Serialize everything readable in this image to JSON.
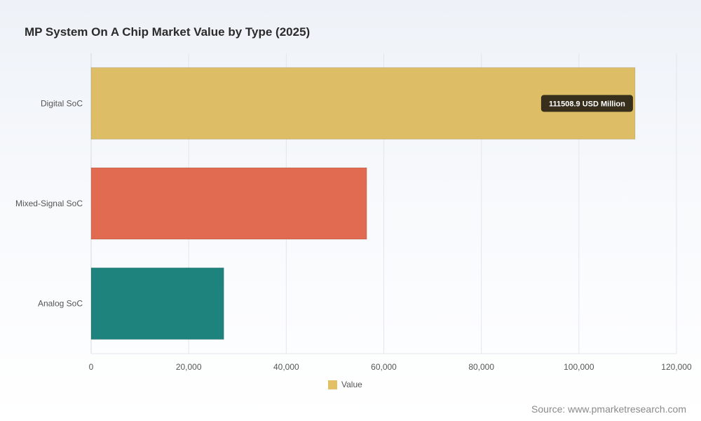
{
  "title": "MP System On A Chip Market Value by Type (2025)",
  "source": "Source: www.pmarketresearch.com",
  "legend": {
    "label": "Value",
    "color": "#e3c066"
  },
  "tooltip": {
    "text": "111508.9 USD Million"
  },
  "chart_data": {
    "type": "bar",
    "orientation": "horizontal",
    "categories": [
      "Digital SoC",
      "Mixed-Signal SoC",
      "Analog SoC"
    ],
    "values": [
      111508.9,
      56500,
      27200
    ],
    "colors": [
      "#ddbd66",
      "#e06b50",
      "#1e827d"
    ],
    "xlim": [
      0,
      120000
    ],
    "xticks": [
      0,
      20000,
      40000,
      60000,
      80000,
      100000,
      120000
    ],
    "xtick_labels": [
      "0",
      "20,000",
      "40,000",
      "60,000",
      "80,000",
      "100,000",
      "120,000"
    ],
    "grid": true,
    "legend_position": "bottom"
  }
}
